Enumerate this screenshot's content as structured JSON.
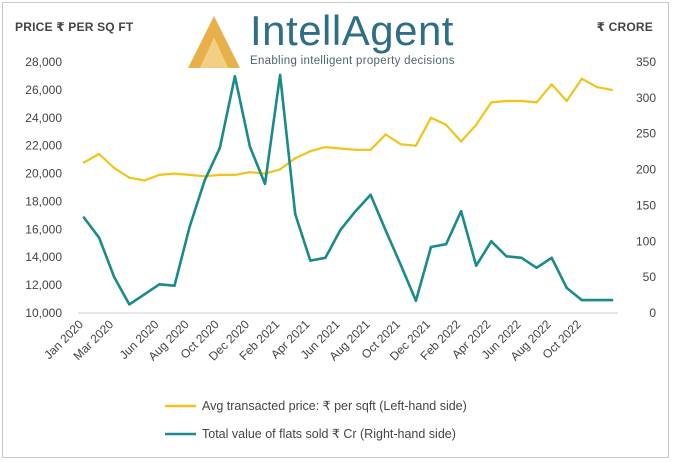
{
  "header": {
    "left_axis_title": "PRICE ₹ PER SQ FT",
    "right_axis_title": "₹ CRORE",
    "brand_name": "IntellAgent",
    "tagline": "Enabling intelligent property decisions"
  },
  "colors": {
    "price_line": "#f0c419",
    "value_line": "#1a8a8a",
    "brand": "#2e6e86",
    "logo_gold": "#e8b04a"
  },
  "chart_data": {
    "type": "line",
    "x": [
      "Jan 2020",
      "Feb 2020",
      "Mar 2020",
      "Apr 2020",
      "May 2020",
      "Jun 2020",
      "Jul 2020",
      "Aug 2020",
      "Sep 2020",
      "Oct 2020",
      "Nov 2020",
      "Dec 2020",
      "Jan 2021",
      "Feb 2021",
      "Mar 2021",
      "Apr 2021",
      "May 2021",
      "Jun 2021",
      "Jul 2021",
      "Aug 2021",
      "Sep 2021",
      "Oct 2021",
      "Nov 2021",
      "Dec 2021",
      "Jan 2022",
      "Feb 2022",
      "Mar 2022",
      "Apr 2022",
      "May 2022",
      "Jun 2022",
      "Jul 2022",
      "Aug 2022",
      "Sep 2022",
      "Oct 2022",
      "Nov 2022",
      "Dec 2022"
    ],
    "x_tick_labels": [
      "Jan 2020",
      "Mar 2020",
      "Jun 2020",
      "Aug 2020",
      "Oct 2020",
      "Dec 2020",
      "Feb 2021",
      "Apr 2021",
      "Jun 2021",
      "Aug 2021",
      "Oct 2021",
      "Dec 2021",
      "Feb 2022",
      "Apr 2022",
      "Jun 2022",
      "Aug 2022",
      "Oct 2022"
    ],
    "series": [
      {
        "name": "Avg transacted price: ₹ per sqft (Left-hand side)",
        "axis": "left",
        "values": [
          20800,
          21400,
          20400,
          19700,
          19500,
          19900,
          20000,
          19900,
          19800,
          19900,
          19900,
          20100,
          20000,
          20300,
          21100,
          21600,
          21900,
          21800,
          21700,
          21700,
          22800,
          22100,
          22000,
          24000,
          23500,
          22300,
          23500,
          25100,
          25200,
          25200,
          25100,
          26400,
          25200,
          26800,
          26200,
          26000
        ]
      },
      {
        "name": "Total value of flats sold ₹ Cr (Right-hand side)",
        "axis": "right",
        "values": [
          133,
          105,
          50,
          12,
          26,
          40,
          38,
          120,
          185,
          230,
          330,
          232,
          180,
          332,
          138,
          73,
          77,
          116,
          142,
          165,
          115,
          67,
          17,
          92,
          96,
          142,
          66,
          100,
          79,
          77,
          63,
          77,
          35,
          18,
          18,
          18
        ]
      }
    ],
    "left_ylim": [
      10000,
      28000
    ],
    "left_yticks": [
      "10,000",
      "12,000",
      "14,000",
      "16,000",
      "18,000",
      "20,000",
      "22,000",
      "24,000",
      "26,000",
      "28,000"
    ],
    "right_ylim": [
      0,
      350
    ],
    "right_yticks": [
      "0",
      "50",
      "100",
      "150",
      "200",
      "250",
      "300",
      "350"
    ],
    "legend_position": "bottom",
    "grid": false
  }
}
